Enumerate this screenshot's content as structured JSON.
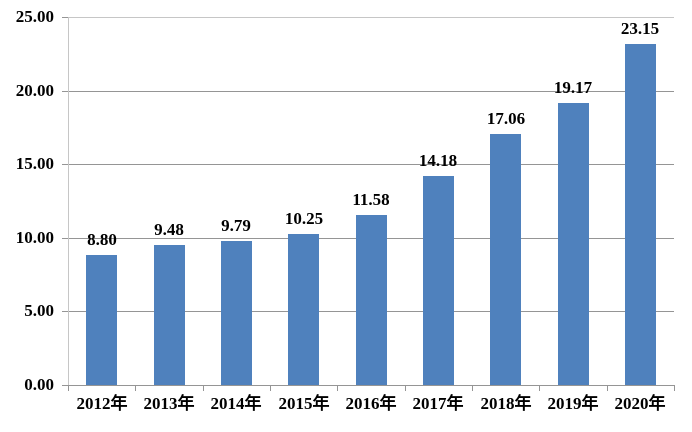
{
  "chart_data": {
    "type": "bar",
    "title": "",
    "xlabel": "",
    "ylabel": "",
    "categories": [
      "2012年",
      "2013年",
      "2014年",
      "2015年",
      "2016年",
      "2017年",
      "2018年",
      "2019年",
      "2020年"
    ],
    "values": [
      8.8,
      9.48,
      9.79,
      10.25,
      11.58,
      14.18,
      17.06,
      19.17,
      23.15
    ],
    "data_labels": [
      "8.80",
      "9.48",
      "9.79",
      "10.25",
      "11.58",
      "14.18",
      "17.06",
      "19.17",
      "23.15"
    ],
    "ylim": [
      0,
      25
    ],
    "yticks": [
      0,
      5,
      10,
      15,
      20,
      25
    ],
    "ytick_labels": [
      "0.00",
      "5.00",
      "10.00",
      "15.00",
      "20.00",
      "25.00"
    ],
    "grid": true,
    "legend": false,
    "colors": {
      "bar": "#4F81BD",
      "gridline": "#959595",
      "axis_line": "#C6C6C6",
      "text": "#000000",
      "background": "#FFFFFF"
    }
  }
}
